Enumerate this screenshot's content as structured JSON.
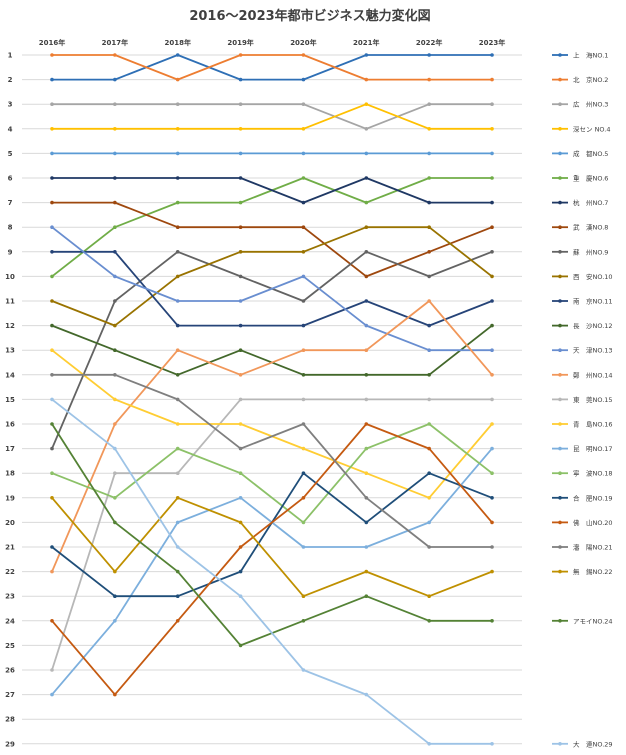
{
  "chart_data": {
    "type": "line",
    "title": "2016〜2023年都市ビジネス魅力変化図",
    "x": [
      "2016年",
      "2017年",
      "2018年",
      "2019年",
      "2020年",
      "2021年",
      "2022年",
      "2023年"
    ],
    "ylim": [
      1,
      29
    ],
    "y_inverted": true,
    "y_ticks": [
      "1",
      "2",
      "3",
      "4",
      "5",
      "6",
      "7",
      "8",
      "9",
      "10",
      "11",
      "12",
      "13",
      "14",
      "15",
      "16",
      "17",
      "18",
      "19",
      "20",
      "21",
      "22",
      "23",
      "24",
      "25",
      "26",
      "27",
      "28",
      "29"
    ],
    "grid": true,
    "legend_position": "right",
    "series": [
      {
        "name": "上　海NO.1",
        "color": "#2e6fb5",
        "values": [
          2,
          2,
          1,
          2,
          2,
          1,
          1,
          1
        ]
      },
      {
        "name": "北　京NO.2",
        "color": "#ed7d31",
        "values": [
          1,
          1,
          2,
          1,
          1,
          2,
          2,
          2
        ]
      },
      {
        "name": "広　州NO.3",
        "color": "#a5a5a5",
        "values": [
          3,
          3,
          3,
          3,
          3,
          4,
          3,
          3
        ]
      },
      {
        "name": "深セン NO.4",
        "color": "#ffc000",
        "values": [
          4,
          4,
          4,
          4,
          4,
          3,
          4,
          4
        ]
      },
      {
        "name": "成　都NO.5",
        "color": "#5b9bd5",
        "values": [
          5,
          5,
          5,
          5,
          5,
          5,
          5,
          5
        ]
      },
      {
        "name": "重　慶NO.6",
        "color": "#70ad47",
        "values": [
          10,
          8,
          7,
          7,
          6,
          7,
          6,
          6
        ]
      },
      {
        "name": "杭　州NO.7",
        "color": "#1f3864",
        "values": [
          6,
          6,
          6,
          6,
          7,
          6,
          7,
          7
        ]
      },
      {
        "name": "武　漢NO.8",
        "color": "#9e480e",
        "values": [
          7,
          7,
          8,
          8,
          8,
          10,
          9,
          8
        ]
      },
      {
        "name": "蘇　州NO.9",
        "color": "#636363",
        "values": [
          17,
          11,
          9,
          10,
          11,
          9,
          10,
          9
        ]
      },
      {
        "name": "西　安NO.10",
        "color": "#997300",
        "values": [
          11,
          12,
          10,
          9,
          9,
          8,
          8,
          10
        ]
      },
      {
        "name": "南　京NO.11",
        "color": "#264478",
        "values": [
          9,
          9,
          12,
          12,
          12,
          11,
          12,
          11
        ]
      },
      {
        "name": "長　沙NO.12",
        "color": "#43682b",
        "values": [
          12,
          13,
          14,
          13,
          14,
          14,
          14,
          12
        ]
      },
      {
        "name": "天　津NO.13",
        "color": "#698ed0",
        "values": [
          8,
          10,
          11,
          11,
          10,
          12,
          13,
          13
        ]
      },
      {
        "name": "鄭　州NO.14",
        "color": "#f1975a",
        "values": [
          22,
          16,
          13,
          14,
          13,
          13,
          11,
          14
        ]
      },
      {
        "name": "東　莞NO.15",
        "color": "#b7b7b7",
        "values": [
          26,
          18,
          18,
          15,
          15,
          15,
          15,
          15
        ]
      },
      {
        "name": "青　島NO.16",
        "color": "#ffcd33",
        "values": [
          13,
          15,
          16,
          16,
          17,
          18,
          19,
          16
        ]
      },
      {
        "name": "昆　明NO.17",
        "color": "#7cafdd",
        "values": [
          27,
          24,
          20,
          19,
          21,
          21,
          20,
          17
        ]
      },
      {
        "name": "寧　波NO.18",
        "color": "#8cc168",
        "values": [
          18,
          19,
          17,
          18,
          20,
          17,
          16,
          18
        ]
      },
      {
        "name": "合　肥NO.19",
        "color": "#1f4e79",
        "values": [
          21,
          23,
          23,
          22,
          18,
          20,
          18,
          19
        ]
      },
      {
        "name": "佛　山NO.20",
        "color": "#c55a11",
        "values": [
          24,
          27,
          24,
          21,
          19,
          16,
          17,
          20
        ]
      },
      {
        "name": "瀋　陽NO.21",
        "color": "#7f7f7f",
        "values": [
          14,
          14,
          15,
          17,
          16,
          19,
          21,
          21
        ]
      },
      {
        "name": "無　錫NO.22",
        "color": "#bf9000",
        "values": [
          19,
          22,
          19,
          20,
          23,
          22,
          23,
          22
        ]
      },
      {
        "name": "アモイNO.24",
        "color": "#548235",
        "values": [
          16,
          20,
          22,
          25,
          24,
          23,
          24,
          24
        ]
      },
      {
        "name": "大　連NO.29",
        "color": "#9dc3e6",
        "values": [
          15,
          17,
          21,
          23,
          26,
          27,
          29,
          29
        ]
      }
    ]
  }
}
